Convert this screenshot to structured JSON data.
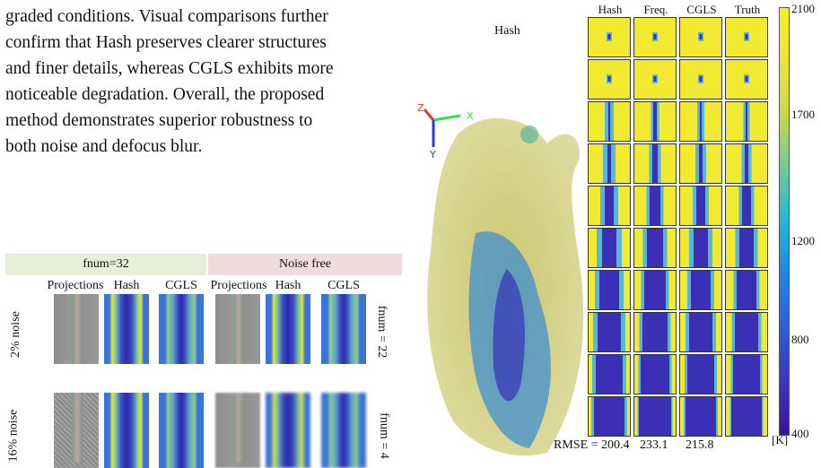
{
  "paragraph": [
    "graded conditions. Visual comparisons further",
    "confirm that Hash preserves clearer structures",
    "and finer details, whereas CGLS exhibits more",
    "noticeable degradation. Overall, the proposed",
    "method demonstrates superior robustness to",
    "both noise and defocus blur."
  ],
  "left_figure": {
    "group_headers": [
      "fnum=32",
      "Noise free"
    ],
    "column_headers": [
      "Projections",
      "Hash",
      "CGLS",
      "Projections",
      "Hash",
      "CGLS"
    ],
    "row_labels_left": [
      "2% noise",
      "16% noise"
    ],
    "row_labels_right": [
      "fnum = 22",
      "fnum = 4"
    ],
    "colors": {
      "green_header": "#e6efd8",
      "pink_header": "#f1dcdc"
    }
  },
  "right_figure": {
    "title": "Hash",
    "axes": {
      "x": "X",
      "y": "Y",
      "z": "Z"
    },
    "column_headers": [
      "Hash",
      "Freq.",
      "CGLS",
      "Truth"
    ],
    "rmse": [
      "RMSE = 200.4",
      "233.1",
      "215.8"
    ],
    "colorbar_ticks": [
      "2100",
      "1700",
      "1200",
      "800",
      "400"
    ],
    "colorbar_unit": "[K]"
  }
}
